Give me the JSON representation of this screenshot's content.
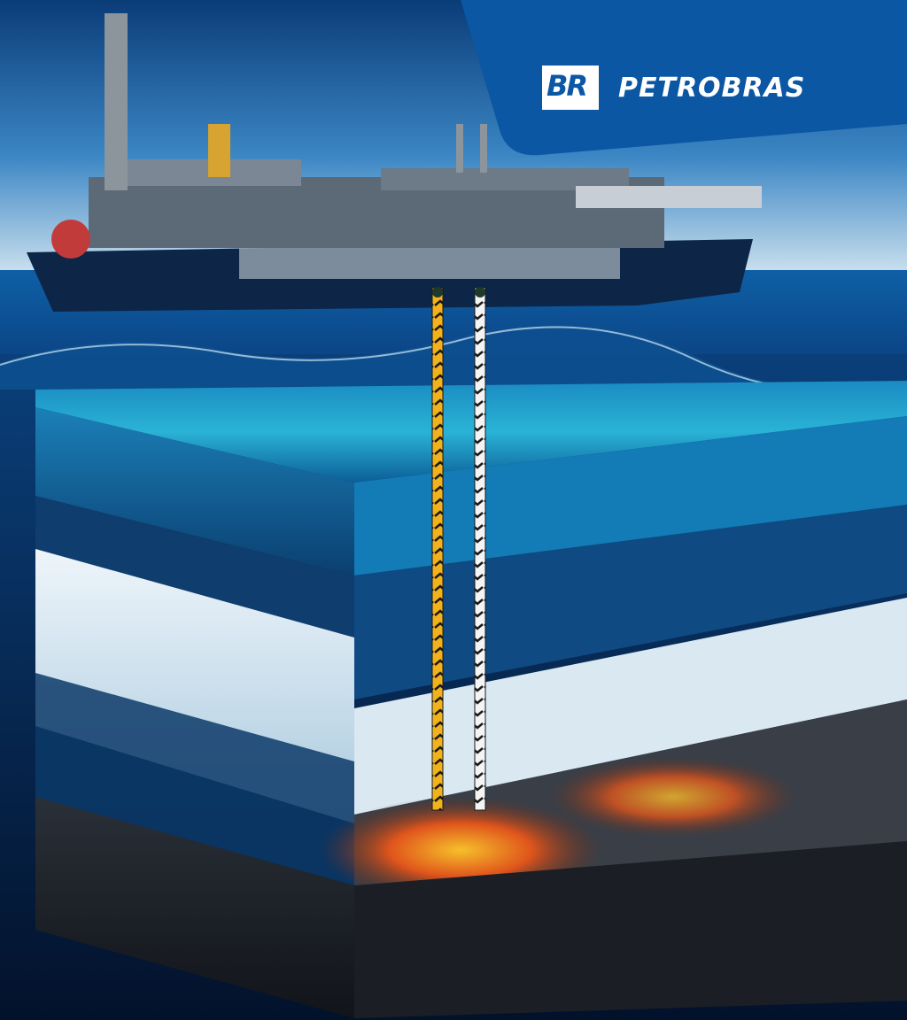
{
  "brand": {
    "logo_mark": "BR",
    "name": "PETROBRAS",
    "tab_color": "#0b57a4"
  },
  "scene": {
    "sky_top": "#0a3c78",
    "sea_color": "#0a4a8a",
    "water_layer": "#1b8fc7",
    "salt_layer": "#dfeaf2",
    "reservoir_glow": "#e0551c",
    "rock_base": "#1b1f25",
    "pipe_left_color": "#f2b21b",
    "pipe_right_color": "#f4f4f4"
  }
}
